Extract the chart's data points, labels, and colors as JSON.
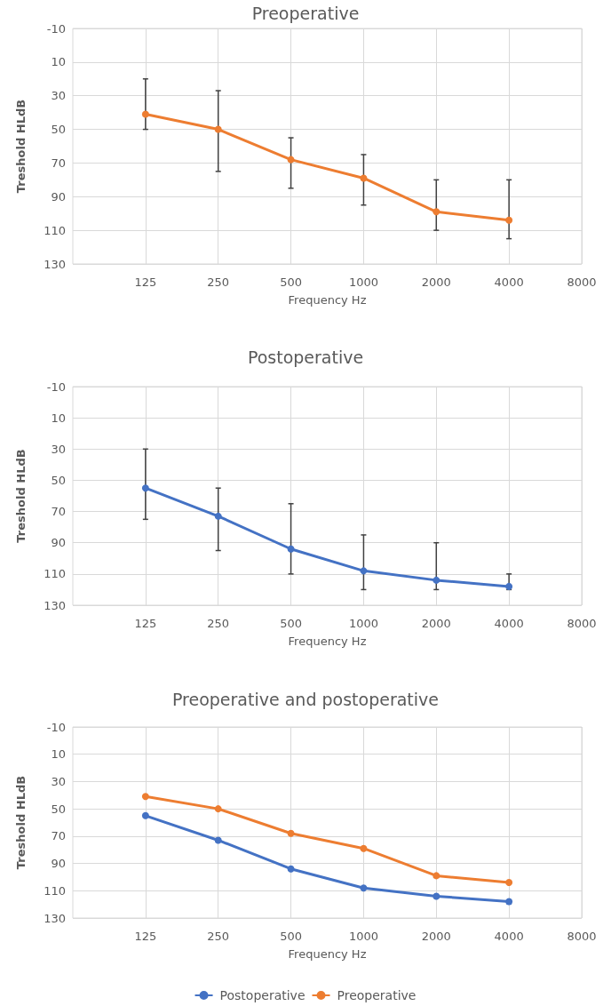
{
  "chart_data": [
    {
      "type": "line",
      "title": "Preoperative",
      "xlabel": "Frequency Hz",
      "ylabel": "Treshold HLdB",
      "log": "x",
      "x": [
        125,
        250,
        500,
        1000,
        2000,
        4000
      ],
      "xlim": [
        62.5,
        8000
      ],
      "xticks": [
        125,
        250,
        500,
        1000,
        2000,
        4000,
        8000
      ],
      "ylim": [
        130,
        -10
      ],
      "yticks": [
        -10,
        10,
        30,
        50,
        70,
        90,
        110,
        130
      ],
      "grid": true,
      "legend": false,
      "marker": "circle",
      "line_style": "solid",
      "series": [
        {
          "color": "#ed7d31",
          "values": [
            41,
            50,
            68,
            79,
            99,
            104
          ],
          "errors": [
            [
              20,
              50
            ],
            [
              27,
              75
            ],
            [
              55,
              85
            ],
            [
              65,
              95
            ],
            [
              80,
              110
            ],
            [
              80,
              115
            ]
          ]
        }
      ]
    },
    {
      "type": "line",
      "title": "Postoperative",
      "xlabel": "Frequency Hz",
      "ylabel": "Treshold HLdB",
      "log": "x",
      "x": [
        125,
        250,
        500,
        1000,
        2000,
        4000
      ],
      "xlim": [
        62.5,
        8000
      ],
      "xticks": [
        125,
        250,
        500,
        1000,
        2000,
        4000,
        8000
      ],
      "ylim": [
        130,
        -10
      ],
      "yticks": [
        -10,
        10,
        30,
        50,
        70,
        90,
        110,
        130
      ],
      "grid": true,
      "legend": false,
      "marker": "circle",
      "line_style": "solid",
      "series": [
        {
          "color": "#4472c4",
          "values": [
            55,
            73,
            94,
            108,
            114,
            118
          ],
          "errors": [
            [
              30,
              75
            ],
            [
              55,
              95
            ],
            [
              65,
              110
            ],
            [
              85,
              120
            ],
            [
              90,
              120
            ],
            [
              110,
              120
            ]
          ]
        }
      ]
    },
    {
      "type": "line",
      "title": "Preoperative and postoperative",
      "xlabel": "Frequency Hz",
      "ylabel": "Treshold HLdB",
      "log": "x",
      "x": [
        125,
        250,
        500,
        1000,
        2000,
        4000
      ],
      "xlim": [
        62.5,
        8000
      ],
      "xticks": [
        125,
        250,
        500,
        1000,
        2000,
        4000,
        8000
      ],
      "ylim": [
        130,
        -10
      ],
      "yticks": [
        -10,
        10,
        30,
        50,
        70,
        90,
        110,
        130
      ],
      "grid": true,
      "legend": "bottom",
      "marker": "circle",
      "line_style": "solid",
      "series": [
        {
          "name": "Postoperative",
          "color": "#4472c4",
          "values": [
            55,
            73,
            94,
            108,
            114,
            118
          ]
        },
        {
          "name": "Preoperative",
          "color": "#ed7d31",
          "values": [
            41,
            50,
            68,
            79,
            99,
            104
          ]
        }
      ]
    }
  ]
}
